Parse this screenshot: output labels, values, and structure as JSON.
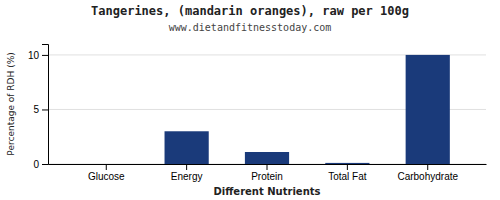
{
  "chart_data": {
    "type": "bar",
    "title": "Tangerines, (mandarin oranges), raw per 100g",
    "subtitle": "www.dietandfitnesstoday.com",
    "xlabel": "Different Nutrients",
    "ylabel": "Percentage of RDH (%)",
    "categories": [
      "Glucose",
      "Energy",
      "Protein",
      "Total Fat",
      "Carbohydrate"
    ],
    "values": [
      0,
      3.0,
      1.1,
      0.1,
      10.0
    ],
    "color": "#1a3a7a",
    "ylim": [
      0,
      11
    ],
    "yticks": [
      0,
      5,
      10
    ],
    "grid": true
  }
}
